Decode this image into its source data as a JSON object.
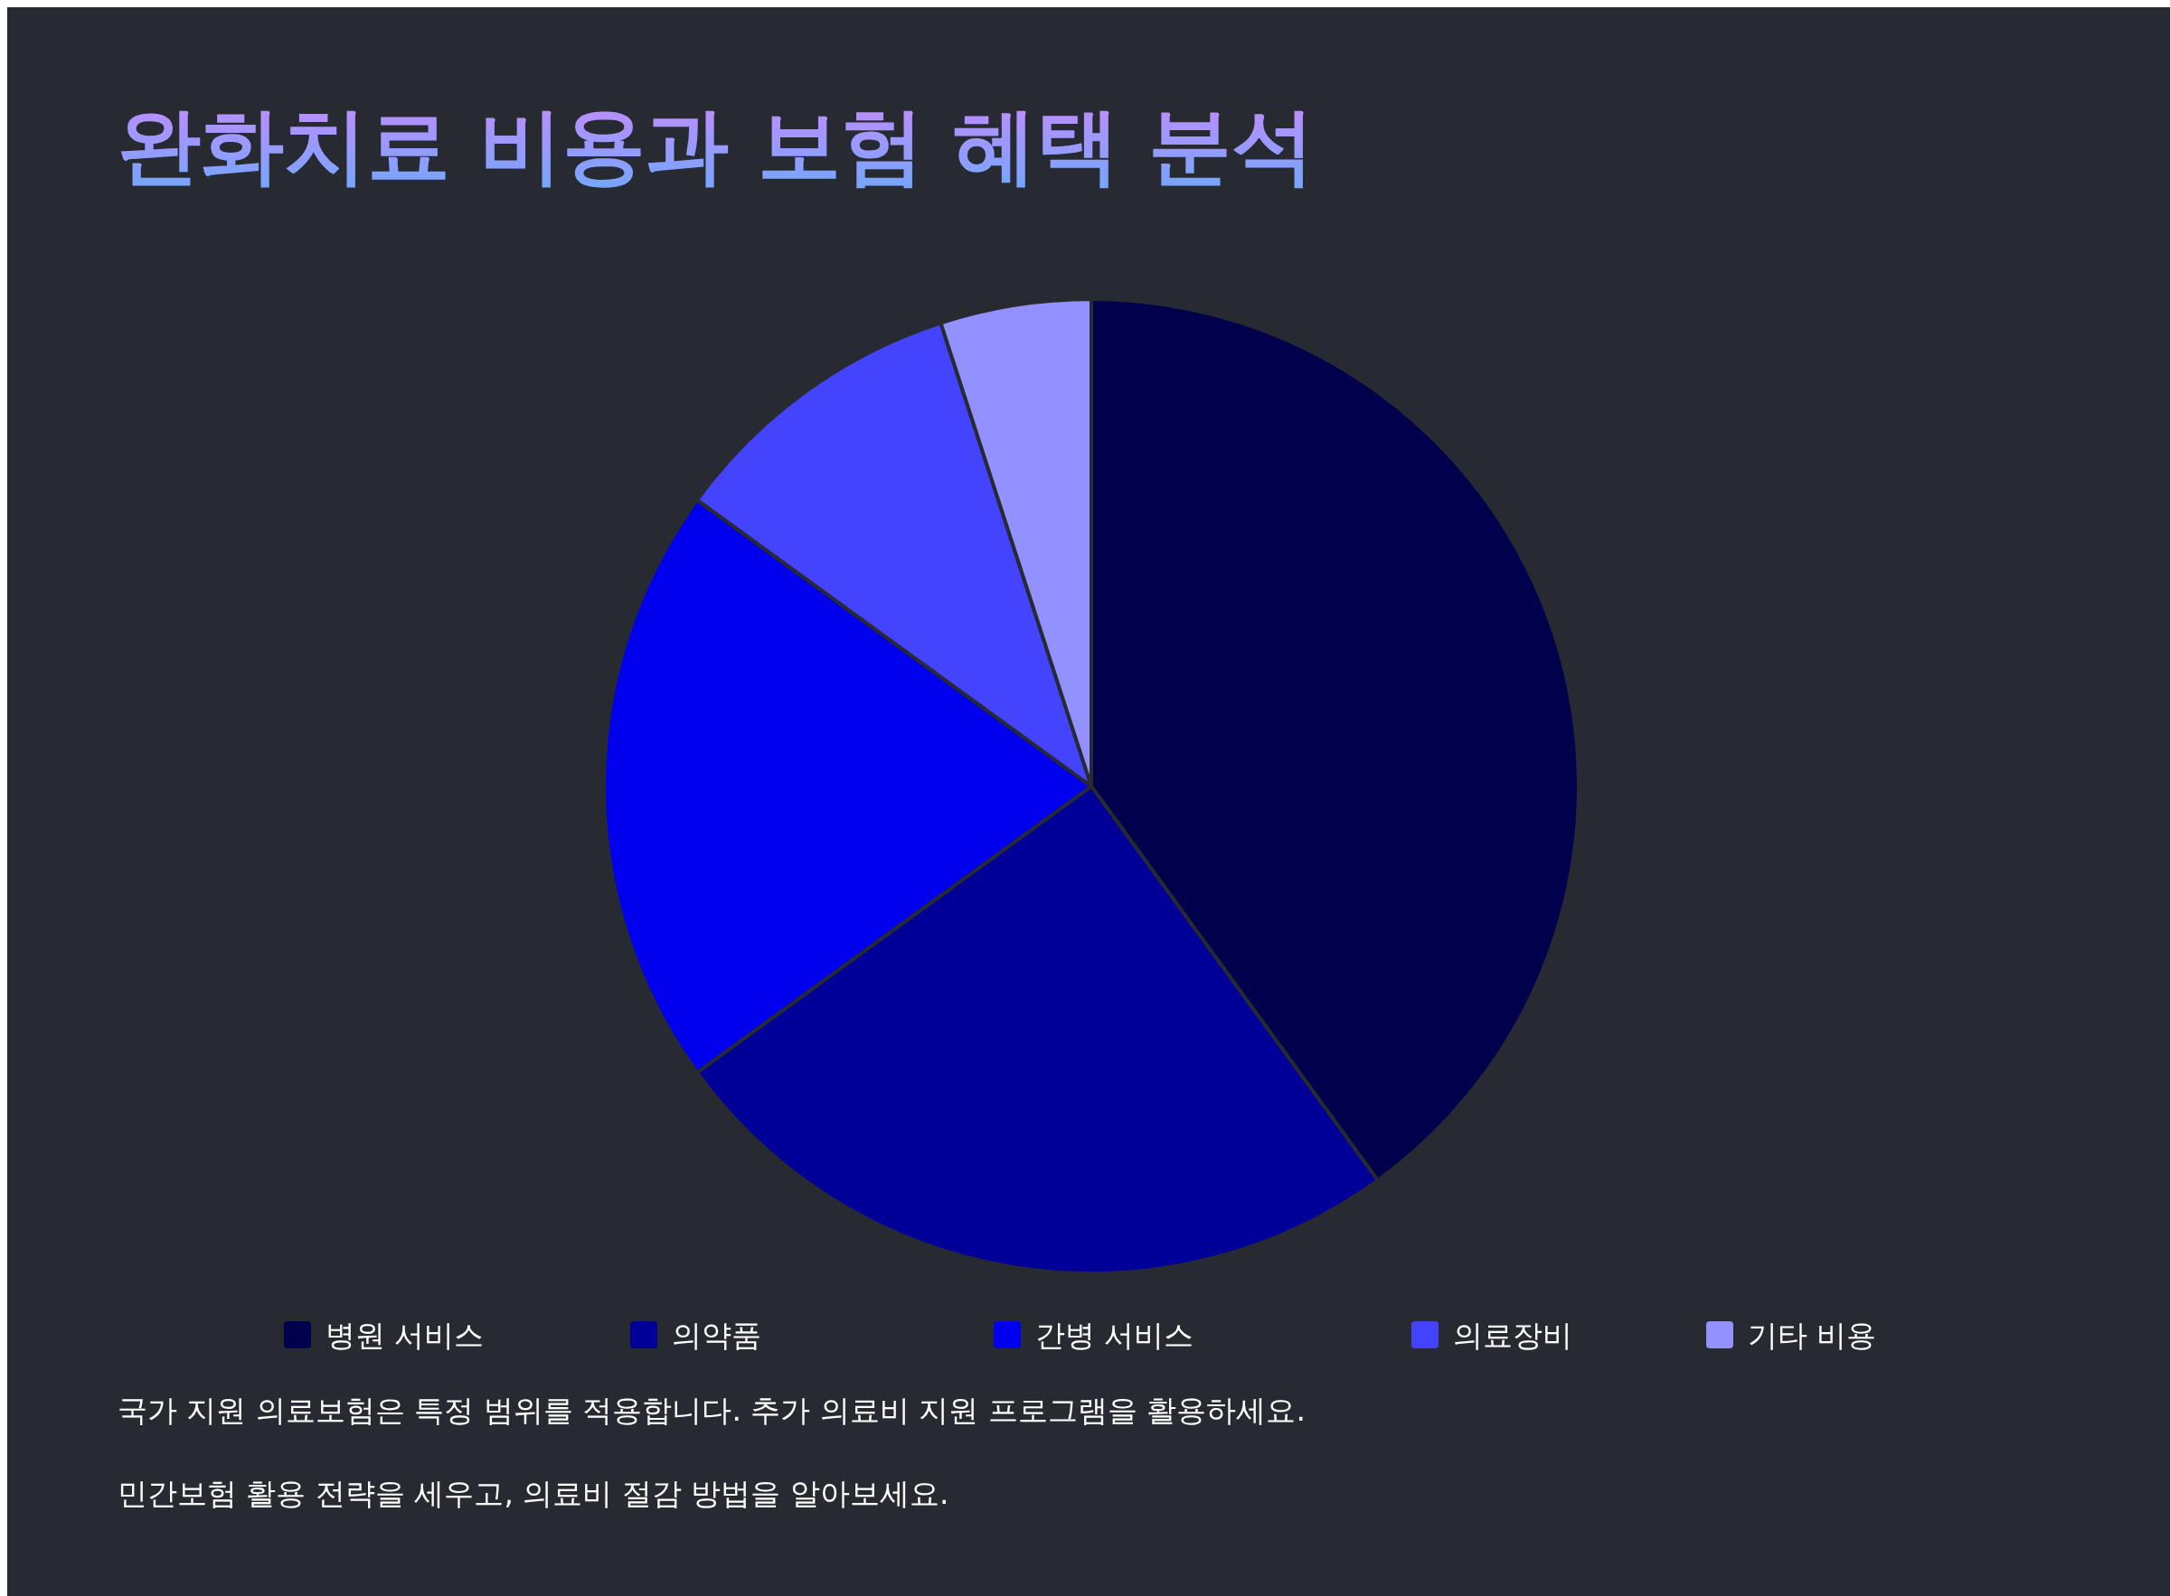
{
  "chart_data": {
    "type": "pie",
    "title": "완화치료 비용과 보험 혜택 분석",
    "categories": [
      "병원 서비스",
      "의약품",
      "간병 서비스",
      "의료장비",
      "기타 비용"
    ],
    "values": [
      40,
      25,
      20,
      10,
      5
    ],
    "colors": [
      "#00004d",
      "#000099",
      "#0000ee",
      "#4444ff",
      "#9391ff"
    ],
    "legend": "bottom",
    "annotations": [
      "국가 지원 의료보험은 특정 범위를 적용합니다. 추가 의료비 지원 프로그램을 활용하세요.",
      "민간보험 활용 전략을 세우고, 의료비 절감 방법을 알아보세요."
    ]
  }
}
